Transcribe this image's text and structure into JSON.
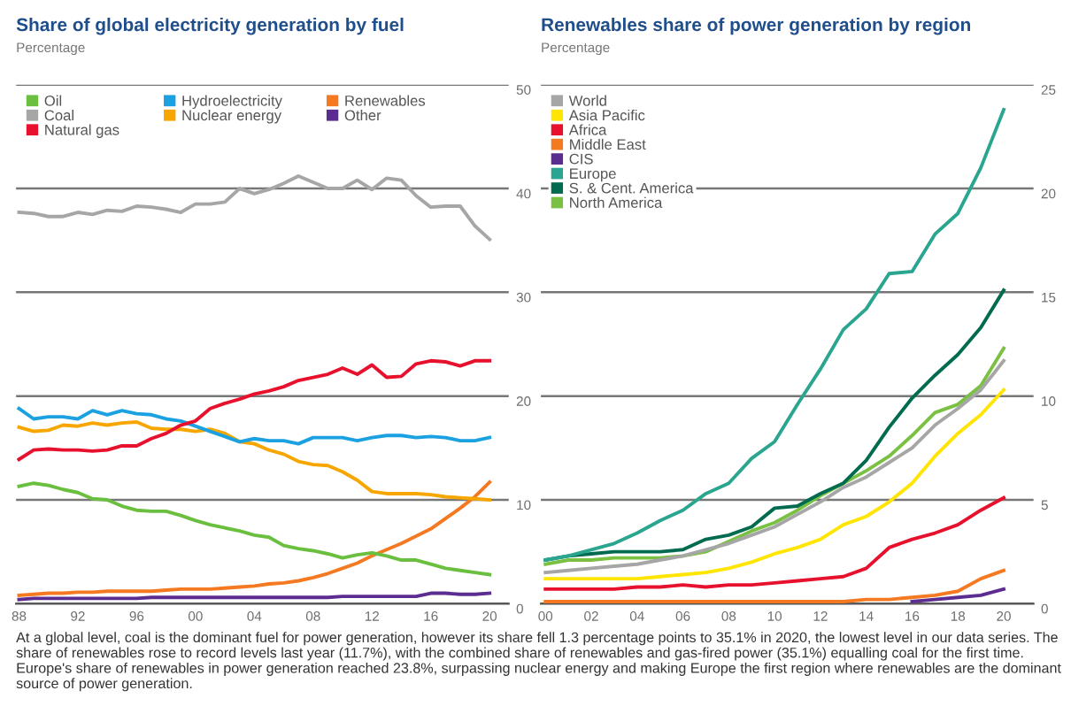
{
  "chart_data": [
    {
      "type": "line",
      "title": "Share of global electricity generation by fuel",
      "subtitle": "Percentage",
      "x": [
        1988,
        1989,
        1990,
        1991,
        1992,
        1993,
        1994,
        1995,
        1996,
        1997,
        1998,
        1999,
        2000,
        2001,
        2002,
        2003,
        2004,
        2005,
        2006,
        2007,
        2008,
        2009,
        2010,
        2011,
        2012,
        2013,
        2014,
        2015,
        2016,
        2017,
        2018,
        2019,
        2020
      ],
      "xlim": [
        1987.8,
        2021.3
      ],
      "xticks": [
        {
          "value": 1988,
          "label": "88"
        },
        {
          "value": 1992,
          "label": "92"
        },
        {
          "value": 1996,
          "label": "96"
        },
        {
          "value": 2000,
          "label": "00"
        },
        {
          "value": 2004,
          "label": "04"
        },
        {
          "value": 2008,
          "label": "08"
        },
        {
          "value": 2012,
          "label": "12"
        },
        {
          "value": 2016,
          "label": "16"
        },
        {
          "value": 2020,
          "label": "20"
        }
      ],
      "ylim": [
        0,
        50
      ],
      "yticks": [
        0,
        10,
        20,
        30,
        40,
        50
      ],
      "grid": "y",
      "legend": "top left",
      "series": [
        {
          "name": "Oil",
          "color": "#6abf3f",
          "values": [
            11.3,
            11.6,
            11.4,
            11.0,
            10.7,
            10.1,
            10.0,
            9.4,
            9.0,
            8.9,
            8.9,
            8.5,
            8.0,
            7.6,
            7.3,
            7.0,
            6.6,
            6.4,
            5.6,
            5.3,
            5.1,
            4.8,
            4.4,
            4.7,
            4.9,
            4.6,
            4.2,
            4.2,
            3.8,
            3.4,
            3.2,
            3.0,
            2.8
          ]
        },
        {
          "name": "Coal",
          "color": "#a6a6a6",
          "values": [
            37.7,
            37.6,
            37.3,
            37.3,
            37.7,
            37.5,
            37.9,
            37.8,
            38.3,
            38.2,
            38.0,
            37.7,
            38.5,
            38.5,
            38.7,
            40.0,
            39.5,
            39.9,
            40.5,
            41.2,
            40.6,
            40.0,
            40.0,
            40.8,
            39.9,
            41.0,
            40.8,
            39.3,
            38.2,
            38.3,
            38.3,
            36.4,
            35.1
          ]
        },
        {
          "name": "Natural gas",
          "color": "#e8112d",
          "values": [
            13.9,
            14.8,
            14.9,
            14.8,
            14.8,
            14.7,
            14.8,
            15.2,
            15.2,
            15.9,
            16.4,
            17.2,
            17.6,
            18.8,
            19.3,
            19.7,
            20.2,
            20.5,
            20.9,
            21.5,
            21.8,
            22.1,
            22.7,
            22.1,
            23.0,
            21.8,
            21.9,
            23.1,
            23.4,
            23.3,
            22.9,
            23.4,
            23.4
          ]
        },
        {
          "name": "Hydroelectricity",
          "color": "#1ba1e2",
          "values": [
            18.8,
            17.8,
            18.0,
            18.0,
            17.8,
            18.6,
            18.2,
            18.6,
            18.3,
            18.2,
            17.8,
            17.6,
            17.1,
            16.6,
            16.1,
            15.6,
            15.9,
            15.7,
            15.7,
            15.4,
            16.0,
            16.0,
            16.0,
            15.7,
            16.0,
            16.2,
            16.2,
            16.0,
            16.1,
            16.0,
            15.7,
            15.7,
            16.0
          ]
        },
        {
          "name": "Nuclear energy",
          "color": "#f7a600",
          "values": [
            17.0,
            16.6,
            16.7,
            17.2,
            17.1,
            17.4,
            17.2,
            17.4,
            17.5,
            16.9,
            16.8,
            16.8,
            16.6,
            16.8,
            16.4,
            15.6,
            15.4,
            14.8,
            14.4,
            13.7,
            13.4,
            13.3,
            12.7,
            11.9,
            10.8,
            10.6,
            10.6,
            10.6,
            10.5,
            10.3,
            10.2,
            10.1,
            10.0
          ]
        },
        {
          "name": "Renewables",
          "color": "#f47920",
          "values": [
            0.8,
            0.9,
            1.0,
            1.0,
            1.1,
            1.1,
            1.2,
            1.2,
            1.2,
            1.2,
            1.3,
            1.4,
            1.4,
            1.4,
            1.5,
            1.6,
            1.7,
            1.9,
            2.0,
            2.2,
            2.5,
            2.9,
            3.4,
            3.9,
            4.6,
            5.2,
            5.8,
            6.5,
            7.2,
            8.2,
            9.2,
            10.3,
            11.7
          ]
        },
        {
          "name": "Other",
          "color": "#5c2d91",
          "values": [
            0.4,
            0.5,
            0.5,
            0.5,
            0.5,
            0.5,
            0.5,
            0.5,
            0.5,
            0.6,
            0.6,
            0.6,
            0.6,
            0.6,
            0.6,
            0.6,
            0.6,
            0.6,
            0.6,
            0.6,
            0.6,
            0.6,
            0.7,
            0.7,
            0.7,
            0.7,
            0.7,
            0.7,
            1.0,
            1.0,
            0.9,
            0.9,
            1.0
          ]
        }
      ],
      "annotations": [
        "At a global level, coal is the dominant fuel for power generation, however its share fell 1.3 percentage points to 35.1% in 2020, the lowest level in our data series. The share of renewables rose to record levels last year (11.7%), with the combined share of renewables and gas-fired power (35.1%) equalling coal for the first time. Europe's share of renewables in power generation reached 23.8%, surpassing nuclear energy and making Europe the first region where renewables are the dominant source of power generation."
      ]
    },
    {
      "type": "line",
      "title": "Renewables share of power generation by region",
      "subtitle": "Percentage",
      "x": [
        2000,
        2001,
        2002,
        2003,
        2004,
        2005,
        2006,
        2007,
        2008,
        2009,
        2010,
        2011,
        2012,
        2013,
        2014,
        2015,
        2016,
        2017,
        2018,
        2019,
        2020
      ],
      "xlim": [
        1999.8,
        2021.3
      ],
      "xticks": [
        {
          "value": 2000,
          "label": "00"
        },
        {
          "value": 2002,
          "label": "02"
        },
        {
          "value": 2004,
          "label": "04"
        },
        {
          "value": 2006,
          "label": "06"
        },
        {
          "value": 2008,
          "label": "08"
        },
        {
          "value": 2010,
          "label": "10"
        },
        {
          "value": 2012,
          "label": "12"
        },
        {
          "value": 2014,
          "label": "14"
        },
        {
          "value": 2016,
          "label": "16"
        },
        {
          "value": 2018,
          "label": "18"
        },
        {
          "value": 2020,
          "label": "20"
        }
      ],
      "ylim": [
        0,
        25
      ],
      "yticks": [
        0,
        5,
        10,
        15,
        20,
        25
      ],
      "grid": "y",
      "legend": "top left",
      "series": [
        {
          "name": "World",
          "color": "#a6a6a6",
          "values": [
            1.5,
            1.6,
            1.7,
            1.8,
            1.9,
            2.1,
            2.3,
            2.6,
            2.9,
            3.3,
            3.7,
            4.3,
            4.9,
            5.6,
            6.1,
            6.8,
            7.5,
            8.6,
            9.4,
            10.3,
            11.7
          ]
        },
        {
          "name": "Asia Pacific",
          "color": "#ffe500",
          "values": [
            1.2,
            1.2,
            1.2,
            1.2,
            1.2,
            1.3,
            1.4,
            1.5,
            1.7,
            2.0,
            2.4,
            2.7,
            3.1,
            3.8,
            4.2,
            4.9,
            5.8,
            7.1,
            8.2,
            9.1,
            10.3
          ]
        },
        {
          "name": "Africa",
          "color": "#e8112d",
          "values": [
            0.7,
            0.7,
            0.7,
            0.7,
            0.8,
            0.8,
            0.9,
            0.8,
            0.9,
            0.9,
            1.0,
            1.1,
            1.2,
            1.3,
            1.7,
            2.7,
            3.1,
            3.4,
            3.8,
            4.5,
            5.1
          ]
        },
        {
          "name": "Middle East",
          "color": "#f47920",
          "values": [
            0.1,
            0.1,
            0.1,
            0.1,
            0.1,
            0.1,
            0.1,
            0.1,
            0.1,
            0.1,
            0.1,
            0.1,
            0.1,
            0.1,
            0.2,
            0.2,
            0.3,
            0.4,
            0.6,
            1.2,
            1.6
          ]
        },
        {
          "name": "CIS",
          "color": "#5c2d91",
          "values": [
            null,
            null,
            null,
            null,
            null,
            null,
            null,
            null,
            null,
            null,
            null,
            null,
            null,
            null,
            null,
            null,
            0.1,
            0.2,
            0.3,
            0.4,
            0.7
          ]
        },
        {
          "name": "Europe",
          "color": "#2aa58f",
          "values": [
            2.1,
            2.3,
            2.6,
            2.9,
            3.4,
            4.0,
            4.5,
            5.3,
            5.8,
            7.0,
            7.8,
            9.6,
            11.3,
            13.2,
            14.2,
            15.9,
            16.0,
            17.8,
            18.8,
            21.0,
            23.8
          ]
        },
        {
          "name": "S. & Cent. America",
          "color": "#006b4f",
          "values": [
            2.1,
            2.3,
            2.4,
            2.5,
            2.5,
            2.5,
            2.6,
            3.1,
            3.3,
            3.7,
            4.6,
            4.7,
            5.3,
            5.8,
            6.9,
            8.5,
            9.9,
            11.0,
            12.0,
            13.3,
            15.1
          ]
        },
        {
          "name": "North America",
          "color": "#7ac143",
          "values": [
            1.9,
            2.1,
            2.1,
            2.2,
            2.2,
            2.2,
            2.3,
            2.5,
            3.0,
            3.5,
            3.9,
            4.5,
            5.2,
            5.8,
            6.4,
            7.1,
            8.1,
            9.2,
            9.6,
            10.5,
            12.3
          ]
        }
      ]
    }
  ]
}
